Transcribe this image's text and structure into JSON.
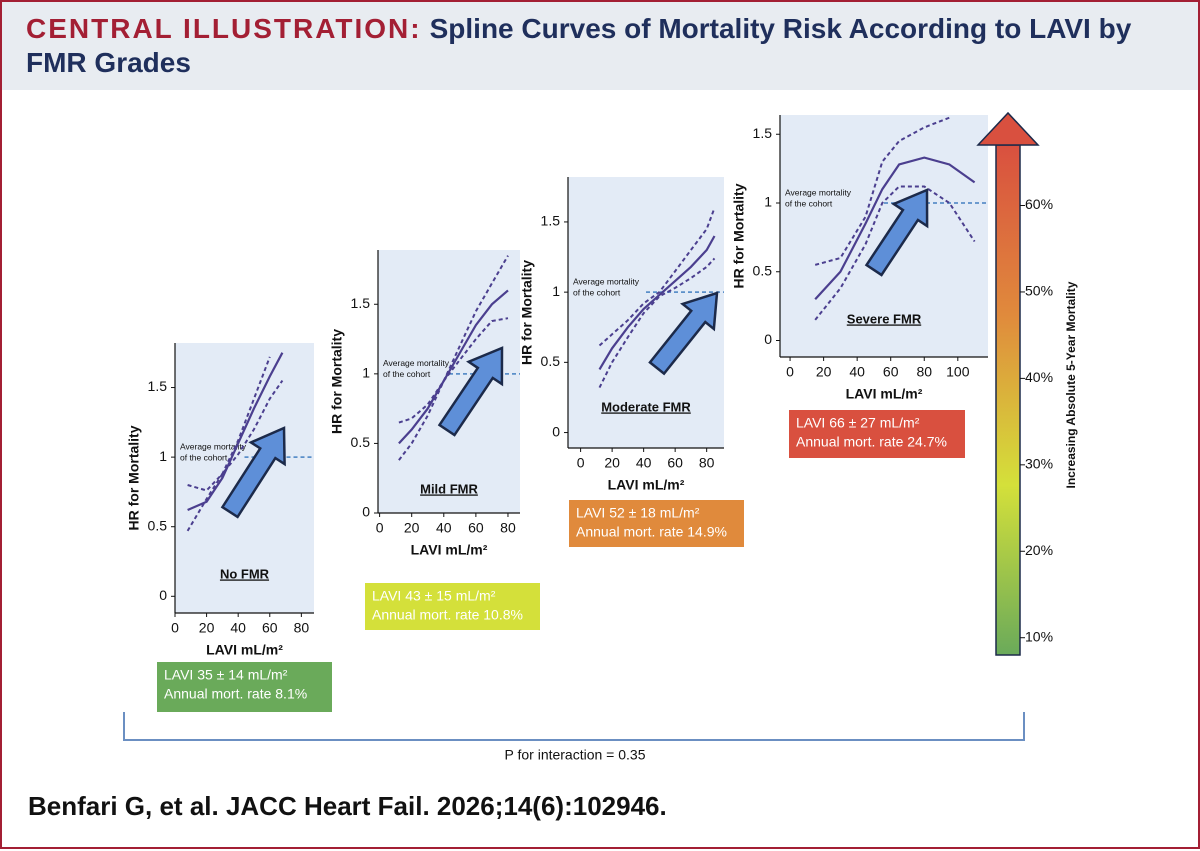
{
  "header": {
    "label": "CENTRAL ILLUSTRATION:",
    "title": "Spline Curves of Mortality Risk According to LAVI by FMR Grades"
  },
  "chart_data": [
    {
      "type": "line",
      "title": "No FMR",
      "xlabel": "LAVI mL/m²",
      "ylabel": "HR for Mortality",
      "xlim": [
        0,
        88
      ],
      "xticks": [
        0,
        20,
        40,
        60,
        80
      ],
      "ylim": [
        -0.12,
        1.82
      ],
      "yticks": [
        0,
        0.5,
        1,
        1.5
      ],
      "x": [
        8,
        20,
        30,
        40,
        50,
        60,
        68
      ],
      "series": [
        {
          "color": "#4b3f8f",
          "line_style": "solid",
          "values": [
            0.62,
            0.68,
            0.85,
            1.1,
            1.35,
            1.58,
            1.75
          ]
        },
        {
          "color": "#4b3f8f",
          "line_style": "dashed",
          "values": [
            0.8,
            0.76,
            0.88,
            1.12,
            1.42,
            1.72,
            null
          ]
        },
        {
          "color": "#4b3f8f",
          "line_style": "dashed",
          "values": [
            0.47,
            0.7,
            0.88,
            1.02,
            1.2,
            1.42,
            1.55
          ]
        }
      ],
      "reference_line": {
        "value": 1,
        "color": "#5b8fc9",
        "label": [
          "Average mortality",
          "of the cohort"
        ]
      },
      "stat_box": {
        "color": "#6aaa5a",
        "lines": [
          "LAVI 35 ± 14 mL/m²",
          "Annual mort. rate 8.1%"
        ]
      }
    },
    {
      "type": "line",
      "title": "Mild FMR",
      "xlabel": "LAVI mL/m²",
      "ylabel": "HR for Mortality",
      "xlim": [
        -1,
        87.5
      ],
      "xticks": [
        0,
        20,
        40,
        60,
        80
      ],
      "ylim": [
        0,
        1.89
      ],
      "yticks": [
        0,
        0.5,
        1,
        1.5
      ],
      "x": [
        12,
        20,
        30,
        40,
        50,
        60,
        70,
        80
      ],
      "series": [
        {
          "color": "#4b3f8f",
          "line_style": "solid",
          "values": [
            0.5,
            0.6,
            0.75,
            0.95,
            1.15,
            1.35,
            1.5,
            1.6
          ]
        },
        {
          "color": "#4b3f8f",
          "line_style": "dashed",
          "values": [
            0.38,
            0.5,
            0.7,
            0.95,
            1.2,
            1.45,
            1.65,
            1.85
          ]
        },
        {
          "color": "#4b3f8f",
          "line_style": "dashed",
          "values": [
            0.65,
            0.68,
            0.78,
            0.95,
            1.1,
            1.25,
            1.38,
            1.4
          ]
        }
      ],
      "reference_line": {
        "value": 1,
        "color": "#5b8fc9",
        "label": [
          "Average mortality",
          "of the cohort"
        ]
      },
      "stat_box": {
        "color": "#d4e03a",
        "lines": [
          "LAVI 43 ± 15 mL/m²",
          "Annual mort. rate 10.8%"
        ]
      }
    },
    {
      "type": "line",
      "title": "Moderate FMR",
      "xlabel": "LAVI mL/m²",
      "ylabel": "HR for Mortality",
      "xlim": [
        -8,
        91
      ],
      "xticks": [
        0,
        20,
        40,
        60,
        80
      ],
      "ylim": [
        -0.11,
        1.82
      ],
      "yticks": [
        0,
        0.5,
        1,
        1.5
      ],
      "x": [
        12,
        20,
        30,
        40,
        50,
        60,
        70,
        80,
        85
      ],
      "series": [
        {
          "color": "#4b3f8f",
          "line_style": "solid",
          "values": [
            0.45,
            0.6,
            0.75,
            0.88,
            0.98,
            1.08,
            1.18,
            1.3,
            1.4
          ]
        },
        {
          "color": "#4b3f8f",
          "line_style": "dashed",
          "values": [
            0.62,
            0.7,
            0.8,
            0.92,
            1.0,
            1.15,
            1.3,
            1.45,
            1.6
          ]
        },
        {
          "color": "#4b3f8f",
          "line_style": "dashed",
          "values": [
            0.32,
            0.5,
            0.68,
            0.85,
            0.97,
            1.03,
            1.1,
            1.18,
            1.24
          ]
        }
      ],
      "reference_line": {
        "value": 1,
        "color": "#5b8fc9",
        "label": [
          "Average mortality",
          "of the cohort"
        ]
      },
      "stat_box": {
        "color": "#e08a3c",
        "lines": [
          "LAVI 52 ± 18 mL/m²",
          "Annual mort. rate 14.9%"
        ]
      }
    },
    {
      "type": "line",
      "title": "Severe FMR",
      "xlabel": "LAVI mL/m²",
      "ylabel": "HR for Mortality",
      "xlim": [
        -6,
        118
      ],
      "xticks": [
        0,
        20,
        40,
        60,
        80,
        100
      ],
      "ylim": [
        -0.12,
        1.64
      ],
      "yticks": [
        0,
        0.5,
        1,
        1.5
      ],
      "x": [
        15,
        30,
        45,
        55,
        65,
        80,
        95,
        110
      ],
      "series": [
        {
          "color": "#4b3f8f",
          "line_style": "solid",
          "values": [
            0.3,
            0.5,
            0.85,
            1.1,
            1.28,
            1.33,
            1.28,
            1.15
          ]
        },
        {
          "color": "#4b3f8f",
          "line_style": "dashed",
          "values": [
            0.55,
            0.6,
            0.9,
            1.3,
            1.45,
            1.55,
            1.62,
            null
          ]
        },
        {
          "color": "#4b3f8f",
          "line_style": "dashed",
          "values": [
            0.15,
            0.38,
            0.7,
            1.0,
            1.12,
            1.12,
            1.0,
            0.72
          ]
        }
      ],
      "reference_line": {
        "value": 1,
        "color": "#5b8fc9",
        "label": [
          "Average mortality",
          "of the cohort"
        ]
      },
      "stat_box": {
        "color": "#d9503f",
        "lines": [
          "LAVI 66 ± 27 mL/m²",
          "Annual mort. rate 24.7%"
        ]
      }
    }
  ],
  "colorbar": {
    "label": "Increasing Absolute 5-Year Mortality",
    "lim": [
      8,
      67
    ],
    "colors": [
      "#6aaa5a",
      "#d4e03a",
      "#e08a3c",
      "#d9503f"
    ],
    "ticks": [
      {
        "value": 10,
        "label": "10%"
      },
      {
        "value": 20,
        "label": "20%"
      },
      {
        "value": 30,
        "label": "30%"
      },
      {
        "value": 40,
        "label": "40%"
      },
      {
        "value": 50,
        "label": "50%"
      },
      {
        "value": 60,
        "label": "60%"
      }
    ]
  },
  "interaction": "P for interaction = 0.35",
  "citation": "Benfari G, et al. JACC Heart Fail. 2026;14(6):102946."
}
